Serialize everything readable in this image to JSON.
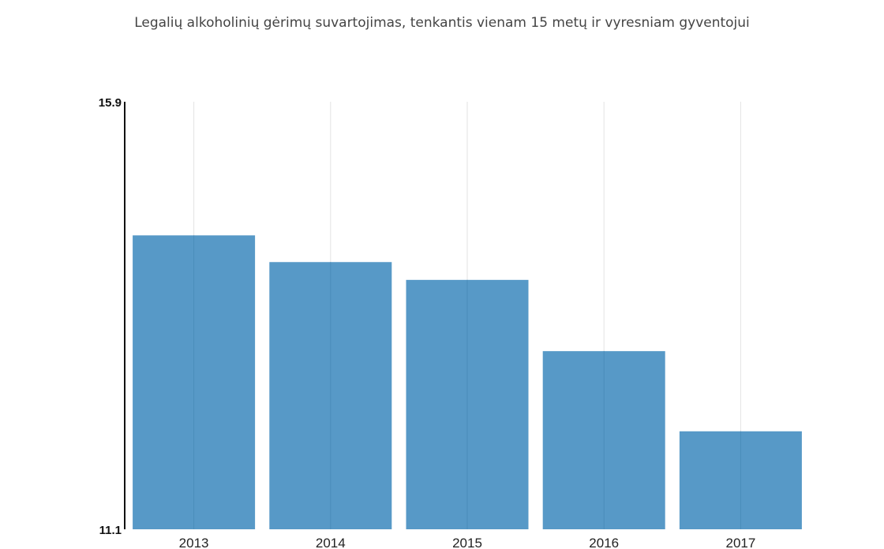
{
  "chart_data": {
    "type": "bar",
    "title": "Legalių alkoholinių gėrimų suvartojimas, tenkantis vienam 15 metų ir vyresniam gyventojui",
    "xlabel": "",
    "ylabel": "",
    "categories": [
      "2013",
      "2014",
      "2015",
      "2016",
      "2017"
    ],
    "values": [
      14.4,
      14.1,
      13.9,
      13.1,
      12.2
    ],
    "ylim": [
      11.1,
      15.9
    ],
    "y_tick_labels": [
      "15.9",
      "11.1"
    ],
    "grid": "vertical",
    "bar_color": "#5799c7",
    "gridline_color": "#e3e3e3",
    "axis_color": "#111111"
  }
}
